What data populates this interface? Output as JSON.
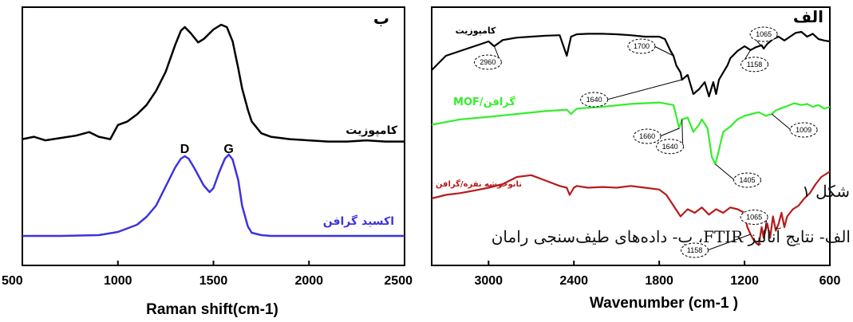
{
  "caption": {
    "line1": "شکل ۱",
    "line2": "الف- نتایج آنالیز FTIR، ب- داده‌های طیف‌سنجی رامان"
  },
  "chart_data": [
    {
      "type": "line",
      "panel_label": "ب",
      "xlabel": "Raman shift(cm-1)",
      "xlim": [
        500,
        2500
      ],
      "x_ticks": [
        "500",
        "1000",
        "1500",
        "2000",
        "2500"
      ],
      "y_ticks_shown": false,
      "peak_labels": [
        {
          "text": "D",
          "x": 1350
        },
        {
          "text": "G",
          "x": 1580
        }
      ],
      "series": [
        {
          "name": "کامپوزیت",
          "color": "#000000",
          "x": [
            500,
            560,
            620,
            700,
            780,
            850,
            900,
            960,
            1000,
            1050,
            1100,
            1150,
            1200,
            1250,
            1300,
            1330,
            1350,
            1380,
            1420,
            1450,
            1500,
            1540,
            1570,
            1600,
            1630,
            1650,
            1680,
            1700,
            1750,
            1800,
            1900,
            2000,
            2100,
            2200,
            2300,
            2400,
            2500
          ],
          "y": [
            0.05,
            0.07,
            0.04,
            0.06,
            0.08,
            0.11,
            0.07,
            0.05,
            0.17,
            0.2,
            0.26,
            0.34,
            0.46,
            0.62,
            0.85,
            0.97,
            1.0,
            0.95,
            0.87,
            0.9,
            0.98,
            1.02,
            1.0,
            0.88,
            0.65,
            0.48,
            0.3,
            0.2,
            0.1,
            0.07,
            0.05,
            0.04,
            0.03,
            0.03,
            0.04,
            0.03,
            0.03
          ]
        },
        {
          "name": "اکسید گرافن",
          "color": "#3d33e0",
          "x": [
            500,
            700,
            900,
            1000,
            1100,
            1150,
            1200,
            1250,
            1300,
            1330,
            1350,
            1370,
            1400,
            1450,
            1480,
            1500,
            1530,
            1560,
            1580,
            1600,
            1630,
            1650,
            1680,
            1700,
            1750,
            1800,
            2000,
            2200,
            2500
          ],
          "y": [
            0.0,
            0.0,
            0.01,
            0.05,
            0.14,
            0.24,
            0.38,
            0.62,
            0.86,
            0.97,
            1.0,
            0.97,
            0.85,
            0.63,
            0.55,
            0.6,
            0.8,
            0.97,
            1.02,
            0.96,
            0.7,
            0.38,
            0.12,
            0.04,
            0.01,
            0.0,
            0.0,
            0.0,
            0.0
          ]
        }
      ]
    },
    {
      "type": "line",
      "panel_label": "الف",
      "xlabel": "Wavenumber (cm-1 )",
      "xlim": [
        3400,
        600
      ],
      "x_ticks": [
        "3000",
        "2400",
        "1800",
        "1200",
        "600"
      ],
      "y_ticks_shown": false,
      "series": [
        {
          "name": "کامپوزیت",
          "color": "#000000",
          "x": [
            3400,
            3300,
            3200,
            3100,
            3000,
            2960,
            2900,
            2800,
            2700,
            2600,
            2500,
            2450,
            2420,
            2380,
            2300,
            2200,
            2100,
            2000,
            1900,
            1800,
            1760,
            1720,
            1700,
            1680,
            1650,
            1640,
            1600,
            1560,
            1520,
            1480,
            1450,
            1420,
            1400,
            1380,
            1350,
            1320,
            1300,
            1250,
            1200,
            1158,
            1120,
            1080,
            1065,
            1040,
            1000,
            960,
            920,
            880,
            840,
            800,
            760,
            720,
            680,
            640,
            600
          ],
          "y": [
            0.2,
            0.5,
            0.6,
            0.7,
            0.8,
            0.7,
            0.83,
            0.88,
            0.9,
            0.92,
            0.93,
            0.5,
            0.9,
            0.95,
            0.96,
            0.96,
            0.95,
            0.93,
            0.9,
            0.9,
            0.85,
            0.6,
            0.5,
            0.3,
            0.15,
            0.0,
            0.1,
            -0.3,
            -0.2,
            -0.05,
            -0.35,
            -0.05,
            -0.3,
            0.0,
            0.15,
            0.3,
            0.45,
            0.6,
            0.7,
            0.62,
            0.68,
            0.72,
            0.65,
            0.75,
            0.85,
            0.9,
            0.82,
            0.9,
            0.98,
            1.0,
            0.9,
            0.96,
            0.85,
            0.82,
            0.8
          ]
        },
        {
          "name": "MOF/گرافن",
          "color": "#33ee2b",
          "x": [
            3400,
            3200,
            3000,
            2800,
            2600,
            2450,
            2420,
            2380,
            2200,
            2000,
            1800,
            1700,
            1680,
            1660,
            1640,
            1600,
            1560,
            1520,
            1500,
            1460,
            1430,
            1405,
            1380,
            1350,
            1300,
            1250,
            1200,
            1150,
            1100,
            1050,
            1009,
            980,
            950,
            900,
            850,
            800,
            760,
            720,
            680,
            640,
            600
          ],
          "y": [
            0.3,
            0.45,
            0.52,
            0.6,
            0.68,
            0.72,
            0.6,
            0.75,
            0.8,
            0.88,
            0.92,
            0.85,
            0.55,
            0.2,
            0.45,
            0.5,
            0.1,
            0.3,
            0.45,
            0.2,
            -0.6,
            -0.8,
            -0.4,
            0.1,
            0.25,
            0.45,
            0.55,
            0.6,
            0.65,
            0.55,
            0.6,
            0.7,
            0.75,
            0.82,
            0.9,
            0.85,
            0.88,
            0.8,
            0.85,
            0.75,
            0.8
          ]
        },
        {
          "name": "نانوخوشه نقره/گرافن",
          "color": "#b81b1b",
          "x": [
            3400,
            3300,
            3200,
            3100,
            3000,
            2900,
            2800,
            2700,
            2600,
            2500,
            2450,
            2430,
            2400,
            2380,
            2300,
            2200,
            2100,
            2000,
            1900,
            1800,
            1750,
            1700,
            1650,
            1600,
            1550,
            1500,
            1450,
            1400,
            1350,
            1300,
            1250,
            1200,
            1180,
            1158,
            1130,
            1100,
            1080,
            1065,
            1040,
            1020,
            1000,
            980,
            960,
            940,
            920,
            900,
            860,
            820,
            780,
            740,
            700,
            660,
            620,
            600
          ],
          "y": [
            0.2,
            0.3,
            0.35,
            0.42,
            0.5,
            0.6,
            0.8,
            0.85,
            0.7,
            0.55,
            0.5,
            0.3,
            0.5,
            0.55,
            0.5,
            0.52,
            0.5,
            0.55,
            0.5,
            0.45,
            0.3,
            0.0,
            -0.3,
            -0.1,
            -0.2,
            -0.05,
            -0.25,
            -0.1,
            -0.2,
            -0.05,
            -0.1,
            -0.2,
            -0.6,
            -0.8,
            -1.0,
            -1.1,
            -0.6,
            -0.9,
            -0.5,
            -0.9,
            -0.3,
            -0.7,
            -0.5,
            -0.2,
            -0.6,
            -0.3,
            -0.1,
            0.0,
            0.2,
            0.35,
            0.6,
            0.8,
            0.9,
            0.95
          ]
        }
      ],
      "annotations": [
        {
          "text": "2960",
          "trace": "کامپوزیت",
          "at": 2960
        },
        {
          "text": "1700",
          "trace": "کامپوزیت",
          "at": 1700
        },
        {
          "text": "1640",
          "trace": "کامپوزیت",
          "at": 1640
        },
        {
          "text": "1065",
          "trace": "کامپوزیت",
          "at": 1065
        },
        {
          "text": "1158",
          "trace": "کامپوزیت",
          "at": 1158
        },
        {
          "text": "1660",
          "trace": "MOF/گرافن",
          "at": 1660
        },
        {
          "text": "1640",
          "trace": "MOF/گرافن",
          "at": 1640
        },
        {
          "text": "1405",
          "trace": "MOF/گرافن",
          "at": 1405
        },
        {
          "text": "1009",
          "trace": "MOF/گرافن",
          "at": 1009
        },
        {
          "text": "1065",
          "trace": "نانوخوشه نقره/گرافن",
          "at": 1065
        },
        {
          "text": "1158",
          "trace": "نانوخوشه نقره/گرافن",
          "at": 1158
        }
      ]
    }
  ]
}
